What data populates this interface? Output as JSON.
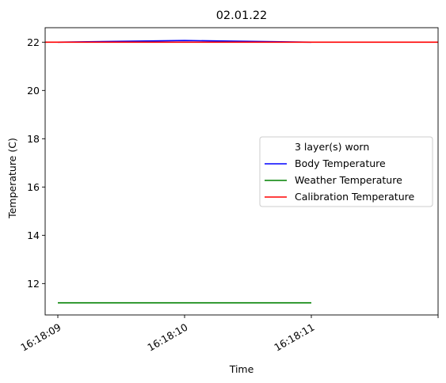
{
  "chart_data": {
    "type": "line",
    "title": "02.01.22",
    "xlabel": "Time",
    "ylabel": "Temperature (C)",
    "x_ticks": [
      "16:18:09",
      "16:18:10",
      "16:18:11",
      ""
    ],
    "y_ticks": [
      12,
      14,
      16,
      18,
      20,
      22
    ],
    "ylim": [
      10.7,
      22.6
    ],
    "xlim": [
      -0.1,
      3.0
    ],
    "grid": false,
    "legend_title": "3 layer(s) worn",
    "legend_position": "center-right",
    "series": [
      {
        "name": "Body Temperature",
        "color": "#0000ff",
        "x": [
          0,
          1,
          2
        ],
        "y": [
          22.0,
          22.07,
          22.0
        ]
      },
      {
        "name": "Weather Temperature",
        "color": "#008000",
        "x": [
          0,
          1,
          2
        ],
        "y": [
          11.2,
          11.2,
          11.2
        ]
      }
    ],
    "hlines": [
      {
        "name": "Calibration Temperature",
        "color": "#ff0000",
        "y": 22.0
      }
    ]
  }
}
